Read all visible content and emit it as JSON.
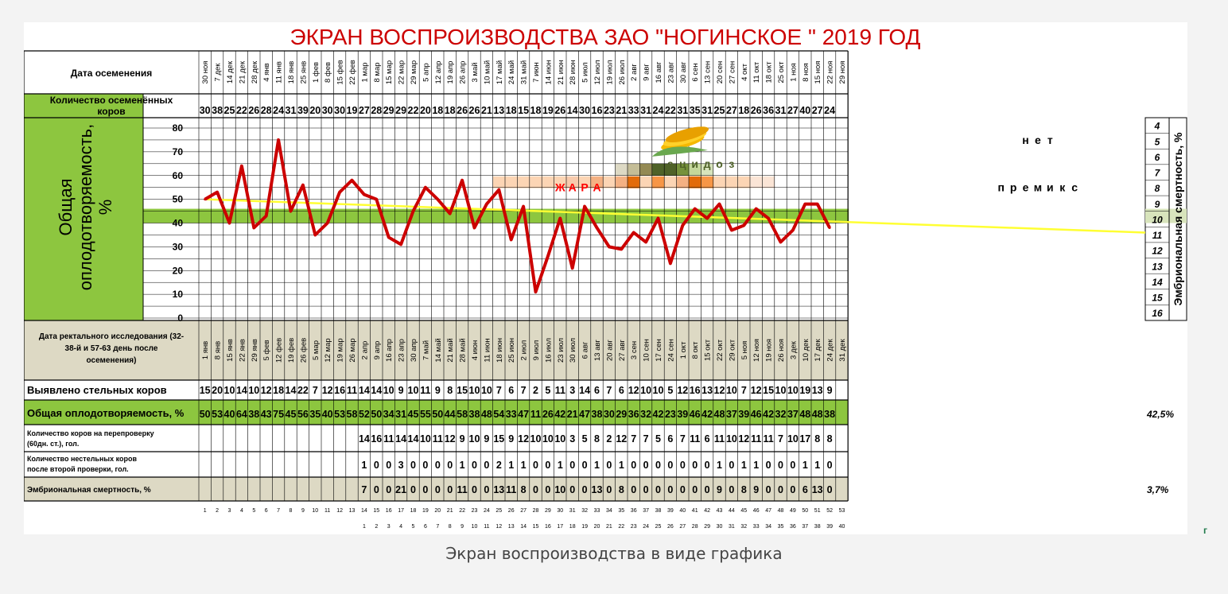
{
  "caption": "Экран воспроизводства в виде графика",
  "corner_mark": "г",
  "colors": {
    "red": "#cc0000",
    "yellow": "#ffff33",
    "green": "#8dc63f",
    "tan": "#ddd9c4",
    "orange": "#f79646",
    "light_orange": "#fcd5b4"
  },
  "chart_data": {
    "type": "line",
    "title": "ЭКРАН ВОСПРОИЗВОДСТВА ЗАО \"НОГИНСКОЕ \" 2019 ГОД",
    "ylabel": "Общая оплодотворяемость, %",
    "ylabel_right": "Эмбриональная смертность, %",
    "ylim": [
      0,
      80
    ],
    "yticks": [
      "0",
      "10",
      "20",
      "30",
      "40",
      "50",
      "60",
      "70",
      "80"
    ],
    "right_ticks": [
      "4",
      "5",
      "6",
      "7",
      "8",
      "9",
      "10",
      "11",
      "12",
      "13",
      "14",
      "15",
      "16"
    ],
    "green_band": [
      40,
      46
    ],
    "row_labels": {
      "insem_date": "Дата осеменения",
      "insem_count": "Количество осеменённых коров",
      "rectal_date": "Дата ректального исследования (32-38-й и 57-63 день после осеменения)",
      "pregnant": "Выявлено стельных коров",
      "fertility": "Общая оплодотворяемость, %",
      "recheck": "Количество коров на перепроверку (60дн. ст.), гол.",
      "nonpreg": "Количество нестельных коров после второй проверки, гол.",
      "embryo": "Эмбриональная смертность, %"
    },
    "insem_dates": [
      "30 ноя",
      "7 дек",
      "14 дек",
      "21 дек",
      "28 дек",
      "4 янв",
      "11 янв",
      "18 янв",
      "25 янв",
      "1 фев",
      "8 фев",
      "15 фев",
      "22 фев",
      "1 мар",
      "8 мар",
      "15 мар",
      "22 мар",
      "29 мар",
      "5 апр",
      "12 апр",
      "19 апр",
      "26 апр",
      "3 май",
      "10 май",
      "17 май",
      "24 май",
      "31 май",
      "7 июн",
      "14 июн",
      "21 июн",
      "28 июн",
      "5 июл",
      "12 июл",
      "19 июл",
      "26 июл",
      "2 авг",
      "9 авг",
      "16 авг",
      "23 авг",
      "30 авг",
      "6 сен",
      "13 сен",
      "20 сен",
      "27 сен",
      "4 окт",
      "11 окт",
      "18 окт",
      "25 окт",
      "1 ноя",
      "8 ноя",
      "15 ноя",
      "22 ноя",
      "29 ноя"
    ],
    "insem_counts": [
      "30",
      "38",
      "25",
      "22",
      "26",
      "28",
      "24",
      "31",
      "39",
      "20",
      "30",
      "30",
      "19",
      "27",
      "28",
      "29",
      "29",
      "22",
      "20",
      "18",
      "18",
      "26",
      "26",
      "21",
      "13",
      "18",
      "15",
      "18",
      "19",
      "26",
      "14",
      "30",
      "16",
      "23",
      "21",
      "33",
      "31",
      "24",
      "22",
      "31",
      "35",
      "31",
      "25",
      "27",
      "18",
      "26",
      "36",
      "31",
      "27",
      "40",
      "27",
      "24",
      ""
    ],
    "rectal_dates": [
      "1 янв",
      "8 янв",
      "15 янв",
      "22 янв",
      "29 янв",
      "5 фев",
      "12 фев",
      "19 фев",
      "26 фев",
      "5 мар",
      "12 мар",
      "19 мар",
      "26 мар",
      "2 апр",
      "9 апр",
      "16 апр",
      "23 апр",
      "30 апр",
      "7 май",
      "14 май",
      "21 май",
      "28 май",
      "4 июн",
      "11 июн",
      "18 июн",
      "25 июн",
      "2 июл",
      "9 июл",
      "16 июл",
      "23 июл",
      "30 июл",
      "6 авг",
      "13 авг",
      "20 авг",
      "27 авг",
      "3 сен",
      "10 сен",
      "17 сен",
      "24 сен",
      "1 окт",
      "8 окт",
      "15 окт",
      "22 окт",
      "29 окт",
      "5 ноя",
      "12 ноя",
      "19 ноя",
      "26 ноя",
      "3 дек",
      "10 дек",
      "17 дек",
      "24 дек",
      "31 дек"
    ],
    "pregnant": [
      "15",
      "20",
      "10",
      "14",
      "10",
      "12",
      "18",
      "14",
      "22",
      "7",
      "12",
      "16",
      "11",
      "14",
      "14",
      "10",
      "9",
      "10",
      "11",
      "9",
      "8",
      "15",
      "10",
      "10",
      "7",
      "6",
      "7",
      "2",
      "5",
      "11",
      "3",
      "14",
      "6",
      "7",
      "6",
      "12",
      "10",
      "10",
      "5",
      "12",
      "16",
      "13",
      "12",
      "10",
      "7",
      "12",
      "15",
      "10",
      "10",
      "19",
      "13",
      "9",
      ""
    ],
    "fertility": [
      "50",
      "53",
      "40",
      "64",
      "38",
      "43",
      "75",
      "45",
      "56",
      "35",
      "40",
      "53",
      "58",
      "52",
      "50",
      "34",
      "31",
      "45",
      "55",
      "50",
      "44",
      "58",
      "38",
      "48",
      "54",
      "33",
      "47",
      "11",
      "26",
      "42",
      "21",
      "47",
      "38",
      "30",
      "29",
      "36",
      "32",
      "42",
      "23",
      "39",
      "46",
      "42",
      "48",
      "37",
      "39",
      "46",
      "42",
      "32",
      "37",
      "48",
      "48",
      "38",
      ""
    ],
    "fertility_total": "42,5%",
    "recheck": [
      "",
      "",
      "",
      "",
      "",
      "",
      "",
      "",
      "",
      "",
      "",
      "",
      "",
      "14",
      "16",
      "11",
      "14",
      "14",
      "10",
      "11",
      "12",
      "9",
      "10",
      "9",
      "15",
      "9",
      "12",
      "10",
      "10",
      "10",
      "3",
      "5",
      "8",
      "2",
      "12",
      "7",
      "7",
      "5",
      "6",
      "7",
      "11",
      "6",
      "11",
      "10",
      "12",
      "11",
      "11",
      "7",
      "10",
      "17",
      "8",
      "8",
      ""
    ],
    "nonpreg": [
      "",
      "",
      "",
      "",
      "",
      "",
      "",
      "",
      "",
      "",
      "",
      "",
      "",
      "1",
      "0",
      "0",
      "3",
      "0",
      "0",
      "0",
      "0",
      "1",
      "0",
      "0",
      "2",
      "1",
      "1",
      "0",
      "0",
      "1",
      "0",
      "0",
      "1",
      "0",
      "1",
      "0",
      "0",
      "0",
      "0",
      "0",
      "0",
      "0",
      "1",
      "0",
      "1",
      "1",
      "0",
      "0",
      "0",
      "1",
      "1",
      "0",
      ""
    ],
    "embryo": [
      "",
      "",
      "",
      "",
      "",
      "",
      "",
      "",
      "",
      "",
      "",
      "",
      "",
      "7",
      "0",
      "0",
      "21",
      "0",
      "0",
      "0",
      "0",
      "11",
      "0",
      "0",
      "13",
      "11",
      "8",
      "0",
      "0",
      "10",
      "0",
      "0",
      "13",
      "0",
      "8",
      "0",
      "0",
      "0",
      "0",
      "0",
      "0",
      "0",
      "9",
      "0",
      "8",
      "9",
      "0",
      "0",
      "0",
      "6",
      "13",
      "0",
      ""
    ],
    "embryo_total": "3,7%",
    "week_numbers": [
      "1",
      "2",
      "3",
      "4",
      "5",
      "6",
      "7",
      "8",
      "9",
      "10",
      "11",
      "12",
      "13",
      "14",
      "15",
      "16",
      "17",
      "18",
      "19",
      "20",
      "21",
      "22",
      "23",
      "24",
      "25",
      "26",
      "27",
      "28",
      "29",
      "30",
      "31",
      "32",
      "33",
      "34",
      "35",
      "36",
      "37",
      "38",
      "39",
      "40",
      "41",
      "42",
      "43",
      "44",
      "45",
      "46",
      "47",
      "48",
      "49",
      "50",
      "51",
      "52",
      "53"
    ],
    "week_numbers_2": [
      "1",
      "2",
      "3",
      "4",
      "5",
      "6",
      "7",
      "8",
      "9",
      "10",
      "11",
      "12",
      "13",
      "14",
      "15",
      "16",
      "17",
      "18",
      "19",
      "20",
      "21",
      "22",
      "23",
      "24",
      "25",
      "26",
      "27",
      "28",
      "29",
      "30",
      "31",
      "32",
      "33",
      "34",
      "35",
      "36",
      "37",
      "38",
      "39",
      "40"
    ],
    "series": [
      {
        "values": [
          50,
          53,
          40,
          64,
          38,
          43,
          75,
          45,
          56,
          35,
          40,
          53,
          58,
          52,
          50,
          34,
          31,
          45,
          55,
          50,
          44,
          58,
          38,
          48,
          54,
          33,
          47,
          11,
          26,
          42,
          21,
          47,
          38,
          30,
          29,
          36,
          32,
          42,
          23,
          39,
          46,
          42,
          48,
          37,
          39,
          46,
          42,
          32,
          37,
          48,
          48,
          38
        ],
        "color": "#cc0000"
      },
      {
        "values": [
          50,
          36
        ],
        "color": "#ffff33",
        "kind": "trend"
      }
    ],
    "annotations": {
      "heat": [
        "Ж",
        "А",
        "Р",
        "А"
      ],
      "acidosis": [
        "а",
        "ц",
        "и",
        "д",
        "о",
        "з"
      ],
      "premix": [
        "п",
        "р",
        "е",
        "м",
        "и",
        "к",
        "с"
      ],
      "none": [
        "н",
        "е",
        "т"
      ]
    }
  }
}
